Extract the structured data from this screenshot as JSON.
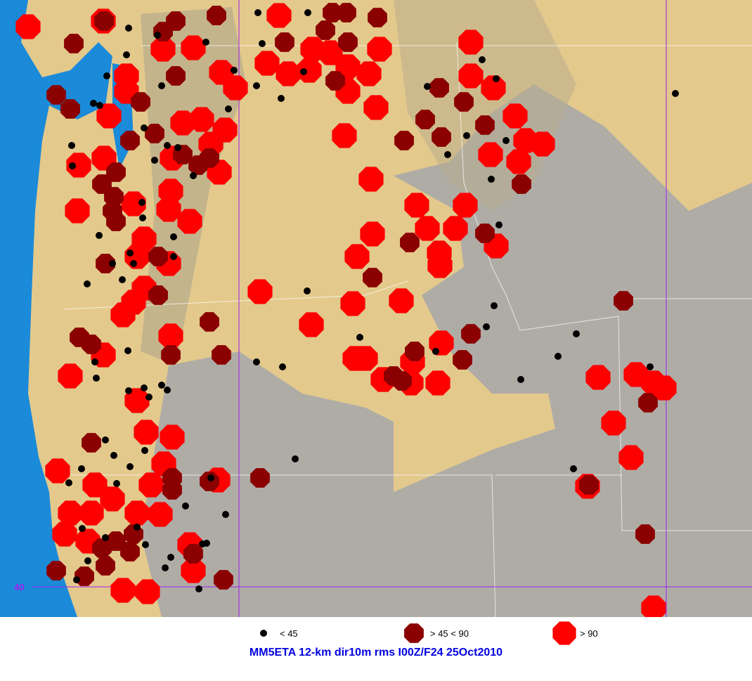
{
  "map": {
    "latitude_label": "40",
    "colors": {
      "ocean": "#1b8ad8",
      "lowland": "#e3c98c",
      "terrain": "#a9a9a9",
      "gridline": "#a020f0",
      "border": "#ffffff",
      "low": "#000000",
      "mid": "#8b0000",
      "high": "#ff0000"
    }
  },
  "legend": {
    "items": [
      {
        "symbol": "black-dot",
        "label": "< 45"
      },
      {
        "symbol": "dark-red-octagon",
        "label": "> 45 < 90"
      },
      {
        "symbol": "red-octagon",
        "label": "> 90"
      }
    ]
  },
  "title": "MM5ETA 12-km dir10m rms I00Z/F24 25Oct2010"
}
